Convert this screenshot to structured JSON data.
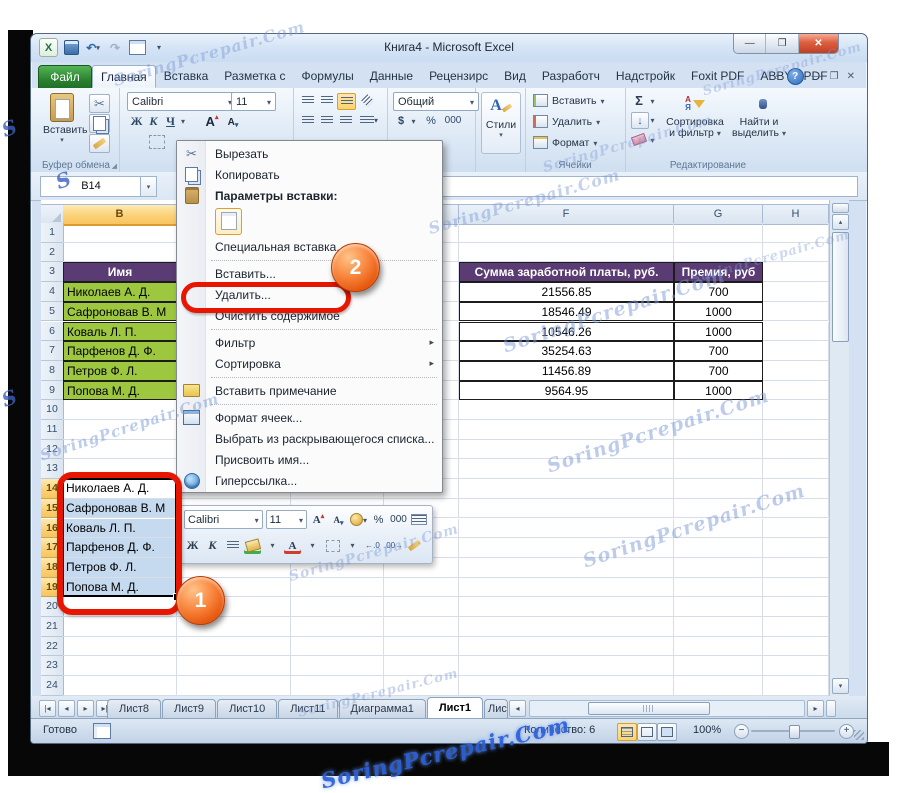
{
  "window_title": "Книга4  -  Microsoft Excel",
  "file_tab": "Файл",
  "active_tab": "Главная",
  "ribbon_tabs": [
    "Главная",
    "Вставка",
    "Разметка с",
    "Формулы",
    "Данные",
    "Рецензирс",
    "Вид",
    "Разработч",
    "Надстройк",
    "Foxit PDF",
    "ABBYY PDF"
  ],
  "ribbon": {
    "paste_label": "Вставить",
    "clipboard_group_label": "Буфер обмена",
    "font_name": "Calibri",
    "font_size": "11",
    "bold": "Ж",
    "italic": "К",
    "underline": "Ч",
    "grow_font": "А",
    "shrink_font": "А",
    "number_format": "Общий",
    "currency": "$",
    "percent": "%",
    "thousand": "000",
    "styles_label": "Стили",
    "cells": {
      "insert": "Вставить",
      "delete": "Удалить",
      "format": "Формат",
      "group_label": "Ячейки"
    },
    "editing": {
      "sigma": "Σ",
      "sort_filter": "Сортировка и фильтр",
      "find_select": "Найти и выделить",
      "group_label": "Редактирование"
    }
  },
  "name_box": "B14",
  "sheet": {
    "columns": [
      "B",
      "",
      "",
      "",
      "F",
      "G",
      "H"
    ],
    "row_labels": [
      1,
      2,
      3,
      4,
      5,
      6,
      7,
      8,
      9,
      10,
      11,
      12,
      13,
      14,
      15,
      16,
      17,
      18,
      19,
      20,
      21,
      22,
      23,
      24
    ],
    "table": {
      "name_header": "Имя",
      "salary_header": "Сумма заработной платы, руб.",
      "bonus_header": "Премия, руб",
      "names": [
        "Николаев А. Д.",
        "Сафроновав В. М",
        "Коваль Л. П.",
        "Парфенов Д. Ф.",
        "Петров Ф. Л.",
        "Попова М. Д."
      ],
      "salaries": [
        "21556.85",
        "18546.49",
        "10546.26",
        "35254.63",
        "11456.89",
        "9564.95"
      ],
      "bonuses": [
        "700",
        "1000",
        "1000",
        "700",
        "700",
        "1000"
      ]
    },
    "selection_rows_start": 14,
    "selection_rows_end": 19
  },
  "context_menu": {
    "items": [
      {
        "label": "Вырезать",
        "icon": "scissors-icon"
      },
      {
        "label": "Копировать",
        "icon": "copy-icon"
      },
      {
        "label": "Параметры вставки:",
        "icon": "clipboard-icon",
        "style": "bold"
      },
      {
        "type": "paste-option",
        "icon": "paste-page-icon"
      },
      {
        "label": "Специальная вставка..."
      },
      {
        "type": "separator"
      },
      {
        "label": "Вставить..."
      },
      {
        "label": "Удалить...",
        "annotated": true
      },
      {
        "label": "Очистить содержимое"
      },
      {
        "type": "separator"
      },
      {
        "label": "Фильтр",
        "submenu": true
      },
      {
        "label": "Сортировка",
        "submenu": true
      },
      {
        "type": "separator"
      },
      {
        "label": "Вставить примечание",
        "icon": "note-icon"
      },
      {
        "type": "separator"
      },
      {
        "label": "Формат ячеек...",
        "icon": "format-cells-icon"
      },
      {
        "label": "Выбрать из раскрывающегося списка..."
      },
      {
        "label": "Присвоить имя..."
      },
      {
        "label": "Гиперссылка...",
        "icon": "hyperlink-icon"
      }
    ]
  },
  "mini_toolbar": {
    "font_name": "Calibri",
    "font_size": "11",
    "bold": "Ж",
    "italic": "К",
    "grow_font": "А",
    "shrink_font": "А",
    "percent": "%",
    "thousand": "000",
    "font_color": "А"
  },
  "sheet_tabs": {
    "tabs": [
      "Лист8",
      "Лист9",
      "Лист10",
      "Лист11",
      "Диаграмма1",
      "Лист1",
      "Лис"
    ],
    "active": "Лист1"
  },
  "status": {
    "mode": "Готово",
    "count_label": "Количество: 6",
    "zoom": "100%"
  },
  "callouts": {
    "step1": "1",
    "step2": "2"
  },
  "watermark_text": "SoringPcrepair.Com",
  "icons": {
    "dropdown": "▾",
    "submenu-arrow": "▸",
    "scissors": "✂",
    "sigma": "Σ",
    "undo": "↶",
    "redo": "↷",
    "minimize": "–",
    "maximize": "❐",
    "close": "✕",
    "help": "?",
    "up": "▴",
    "down": "▾",
    "left": "◂",
    "right": "▸"
  },
  "colors": {
    "header_purple": "#5b3b73",
    "row_green": "#9dc73f",
    "selection_blue": "#c6daef",
    "annotation_red": "#e81600",
    "callout_orange": "#f8833b",
    "selected_header_orange": "#fbd47c",
    "file_tab_green": "#2b822f"
  }
}
